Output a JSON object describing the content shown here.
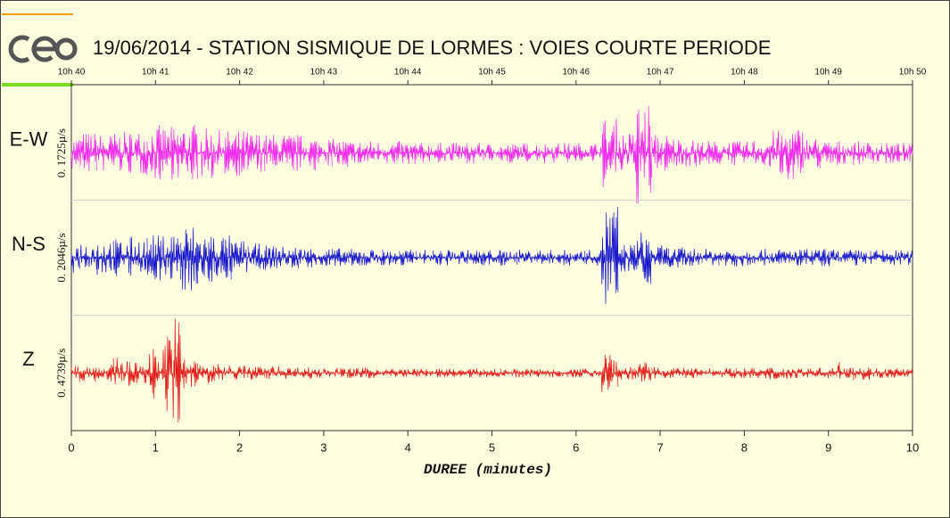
{
  "chart_data": {
    "type": "seismogram",
    "title": "19/06/2014  -  STATION SISMIQUE DE LORMES : VOIES COURTE PERIODE",
    "xlabel": "DUREE (minutes)",
    "xlim": [
      0,
      10
    ],
    "xticks": [
      0,
      1,
      2,
      3,
      4,
      5,
      6,
      7,
      8,
      9,
      10
    ],
    "top_ticks": [
      {
        "value": 0,
        "label": "10h 40"
      },
      {
        "value": 1,
        "label": "10h 41"
      },
      {
        "value": 2,
        "label": "10h 42"
      },
      {
        "value": 3,
        "label": "10h 43"
      },
      {
        "value": 4,
        "label": "10h 44"
      },
      {
        "value": 5,
        "label": "10h 45"
      },
      {
        "value": 6,
        "label": "10h 46"
      },
      {
        "value": 7,
        "label": "10h 47"
      },
      {
        "value": 8,
        "label": "10h 48"
      },
      {
        "value": 9,
        "label": "10h 49"
      },
      {
        "value": 10,
        "label": "10h 50"
      }
    ],
    "x": [
      0,
      0.2,
      0.4,
      0.6,
      0.8,
      1,
      1.2,
      1.4,
      1.6,
      1.8,
      2,
      2.2,
      2.4,
      2.6,
      2.8,
      3,
      3.2,
      3.4,
      3.6,
      3.8,
      4,
      4.2,
      4.4,
      4.6,
      4.8,
      5,
      5.2,
      5.4,
      5.6,
      5.8,
      6,
      6.2,
      6.4,
      6.6,
      6.8,
      7,
      7.2,
      7.4,
      7.6,
      7.8,
      8,
      8.2,
      8.4,
      8.6,
      8.8,
      9,
      9.2,
      9.4,
      9.6,
      9.8,
      10
    ],
    "series": [
      {
        "name": "E-W",
        "color": "#ee22ee",
        "scale": {
          "value": 0.1725,
          "label": "0. 1725µ/s"
        },
        "values": [
          0.054,
          0.065,
          0.059,
          0.065,
          0.07,
          0.086,
          0.081,
          0.092,
          0.076,
          0.07,
          0.07,
          0.065,
          0.059,
          0.059,
          0.054,
          0.049,
          0.043,
          0.038,
          0.038,
          0.038,
          0.035,
          0.032,
          0.032,
          0.032,
          0.032,
          0.03,
          0.03,
          0.03,
          0.032,
          0.032,
          0.032,
          0.032,
          0.108,
          0.065,
          0.162,
          0.059,
          0.049,
          0.041,
          0.038,
          0.038,
          0.035,
          0.043,
          0.07,
          0.081,
          0.049,
          0.038,
          0.038,
          0.035,
          0.032,
          0.032,
          0.027
        ]
      },
      {
        "name": "N-S",
        "color": "#1111cc",
        "scale": {
          "value": 0.2046,
          "label": "0. 2046µ/s"
        },
        "values": [
          0.058,
          0.064,
          0.07,
          0.07,
          0.077,
          0.083,
          0.102,
          0.122,
          0.096,
          0.083,
          0.064,
          0.051,
          0.045,
          0.042,
          0.038,
          0.038,
          0.035,
          0.032,
          0.032,
          0.032,
          0.029,
          0.029,
          0.029,
          0.029,
          0.029,
          0.029,
          0.029,
          0.029,
          0.029,
          0.029,
          0.029,
          0.029,
          0.205,
          0.051,
          0.096,
          0.045,
          0.038,
          0.035,
          0.032,
          0.032,
          0.032,
          0.032,
          0.032,
          0.032,
          0.032,
          0.032,
          0.029,
          0.029,
          0.029,
          0.029,
          0.026
        ]
      },
      {
        "name": "Z",
        "color": "#e01515",
        "scale": {
          "value": 0.4739,
          "label": "0. 4739µ/s"
        },
        "values": [
          0.074,
          0.074,
          0.074,
          0.133,
          0.089,
          0.222,
          0.488,
          0.148,
          0.089,
          0.074,
          0.067,
          0.059,
          0.059,
          0.052,
          0.052,
          0.044,
          0.044,
          0.044,
          0.044,
          0.037,
          0.037,
          0.037,
          0.037,
          0.037,
          0.037,
          0.037,
          0.037,
          0.037,
          0.037,
          0.037,
          0.037,
          0.037,
          0.222,
          0.059,
          0.089,
          0.052,
          0.044,
          0.044,
          0.044,
          0.044,
          0.044,
          0.044,
          0.052,
          0.052,
          0.044,
          0.044,
          0.104,
          0.059,
          0.044,
          0.044,
          0.037
        ]
      }
    ]
  }
}
